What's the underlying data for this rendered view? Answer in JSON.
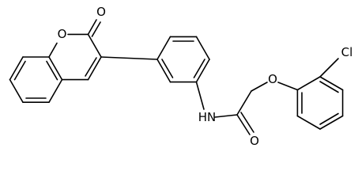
{
  "atoms": {
    "ring_oxygen": "O",
    "lactone_carbonyl_oxygen": "O",
    "amide_nitrogen": "HN",
    "amide_carbonyl_oxygen": "O",
    "ether_oxygen": "O",
    "chlorine": "Cl"
  }
}
